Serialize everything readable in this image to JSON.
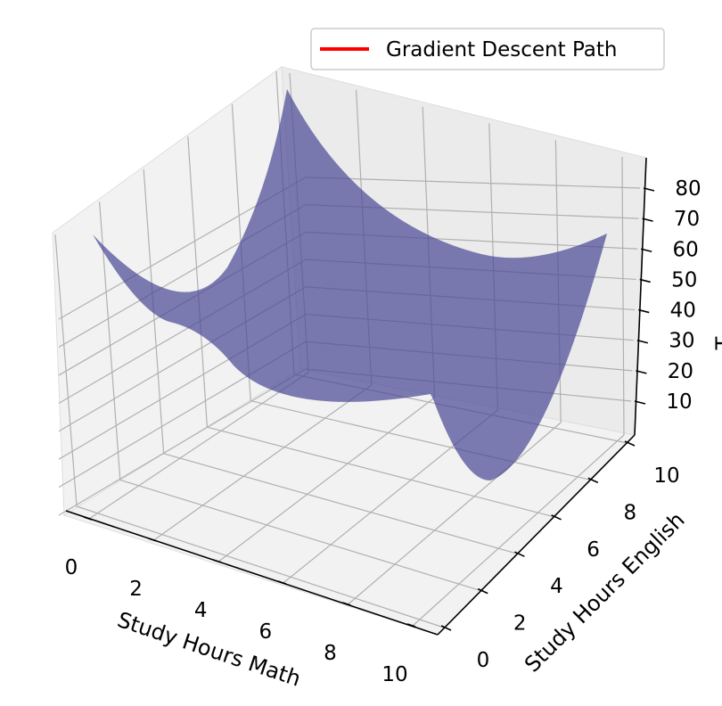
{
  "chart_data": {
    "type": "surface3d",
    "title": "",
    "xlabel": "Study Hours Math",
    "ylabel": "Study Hours English",
    "zlabel": "T",
    "xlim": [
      0,
      10
    ],
    "ylim": [
      0,
      10
    ],
    "zlim": [
      0,
      90
    ],
    "x_ticks": [
      0,
      2,
      4,
      6,
      8,
      10
    ],
    "y_ticks": [
      0,
      2,
      4,
      6,
      8,
      10
    ],
    "z_ticks": [
      10,
      20,
      30,
      40,
      50,
      60,
      70,
      80
    ],
    "surface": {
      "color": "#4b4b96",
      "corners": [
        {
          "x": 0,
          "y": 0,
          "z": 75
        },
        {
          "x": 10,
          "y": 0,
          "z": 5
        },
        {
          "x": 10,
          "y": 10,
          "z": 75
        },
        {
          "x": 0,
          "y": 10,
          "z": 88
        }
      ],
      "minimum": {
        "x": 9.5,
        "y": 2,
        "z": 0
      }
    },
    "series": [
      {
        "name": "Gradient Descent Path",
        "color": "#ff0000",
        "values": []
      }
    ],
    "legend": "top-right",
    "grid": true
  }
}
